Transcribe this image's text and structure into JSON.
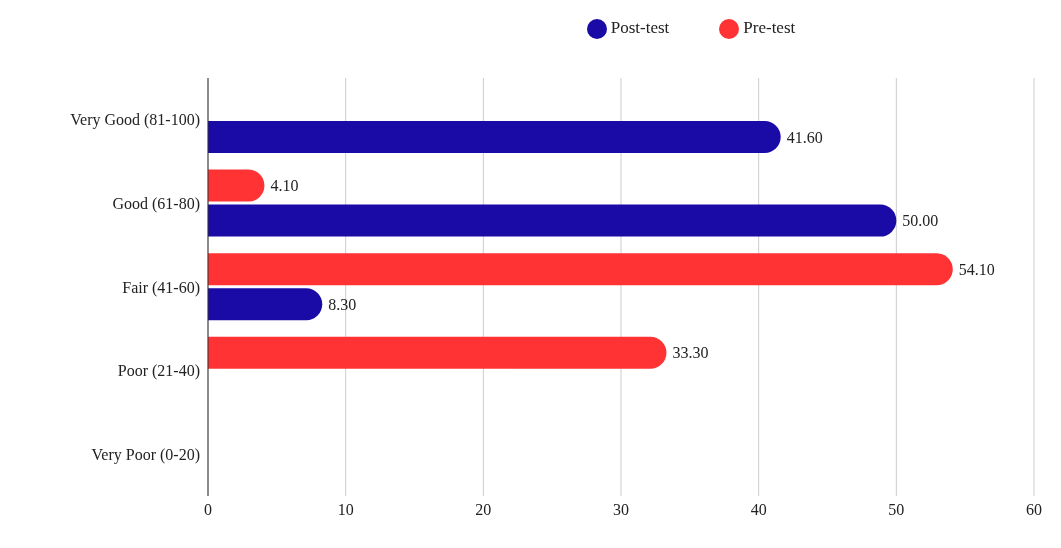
{
  "chart_data": {
    "type": "bar",
    "orientation": "horizontal",
    "categories": [
      "Very Good (81-100)",
      "Good (61-80)",
      "Fair (41-60)",
      "Poor (21-40)",
      "Very Poor (0-20)"
    ],
    "series": [
      {
        "name": "Pre-test",
        "color": "#ff3333",
        "values": [
          null,
          4.1,
          54.1,
          33.3,
          null
        ],
        "value_labels": [
          null,
          "4.10",
          "54.10",
          "33.30",
          null
        ]
      },
      {
        "name": "Post-test",
        "color": "#1a0aa6",
        "values": [
          41.6,
          50.0,
          8.3,
          null,
          null
        ],
        "value_labels": [
          "41.60",
          "50.00",
          "8.30",
          null,
          null
        ]
      }
    ],
    "xlim": [
      0,
      60
    ],
    "xticks": [
      0,
      10,
      20,
      30,
      40,
      50,
      60
    ],
    "grid": "x",
    "legend": "top"
  }
}
